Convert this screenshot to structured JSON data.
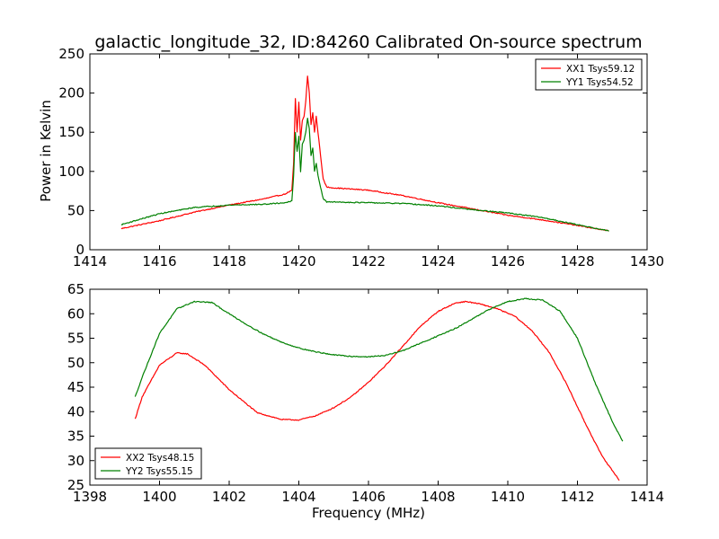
{
  "chart_data": [
    {
      "type": "line",
      "title": "galactic_longitude_32, ID:84260 Calibrated On-source spectrum",
      "xlabel": "",
      "ylabel": "Power in Kelvin",
      "xlim": [
        1414,
        1430
      ],
      "ylim": [
        0,
        250
      ],
      "xticks": [
        "1414",
        "1416",
        "1418",
        "1420",
        "1422",
        "1424",
        "1426",
        "1428",
        "1430"
      ],
      "yticks": [
        "0",
        "50",
        "100",
        "150",
        "200",
        "250"
      ],
      "grid": false,
      "legend_position": "top-right",
      "series": [
        {
          "name": "XX1 Tsys59.12",
          "color": "#ff0000",
          "x": [
            1414.9,
            1416,
            1417,
            1418,
            1419,
            1419.6,
            1419.8,
            1419.85,
            1419.9,
            1419.95,
            1420.0,
            1420.05,
            1420.1,
            1420.15,
            1420.2,
            1420.25,
            1420.3,
            1420.35,
            1420.4,
            1420.45,
            1420.5,
            1420.55,
            1420.6,
            1420.65,
            1420.7,
            1420.8,
            1421,
            1422,
            1423,
            1424,
            1425,
            1426,
            1427,
            1428,
            1428.9
          ],
          "y": [
            27,
            37,
            48,
            57,
            65,
            71,
            76,
            110,
            193,
            150,
            188,
            140,
            165,
            170,
            190,
            222,
            200,
            160,
            175,
            150,
            170,
            150,
            130,
            110,
            90,
            80,
            79,
            76,
            69,
            60,
            52,
            44,
            38,
            31,
            24
          ]
        },
        {
          "name": "YY1 Tsys54.52",
          "color": "#008000",
          "x": [
            1414.9,
            1416,
            1417,
            1418,
            1419,
            1419.6,
            1419.8,
            1419.85,
            1419.9,
            1419.95,
            1420.0,
            1420.05,
            1420.1,
            1420.15,
            1420.2,
            1420.25,
            1420.3,
            1420.35,
            1420.4,
            1420.45,
            1420.5,
            1420.55,
            1420.6,
            1420.65,
            1420.7,
            1420.8,
            1421,
            1422,
            1423,
            1424,
            1425,
            1426,
            1427,
            1428,
            1428.9
          ],
          "y": [
            32,
            46,
            54,
            57,
            58,
            60,
            62,
            95,
            150,
            125,
            145,
            100,
            135,
            140,
            150,
            168,
            155,
            120,
            130,
            100,
            110,
            95,
            85,
            75,
            65,
            61,
            61,
            60,
            59,
            56,
            51,
            47,
            41,
            32,
            24
          ]
        }
      ]
    },
    {
      "type": "line",
      "title": "",
      "xlabel": "Frequency (MHz)",
      "ylabel": "",
      "xlim": [
        1398,
        1414
      ],
      "ylim": [
        25,
        65
      ],
      "xticks": [
        "1398",
        "1400",
        "1402",
        "1404",
        "1406",
        "1408",
        "1410",
        "1412",
        "1414"
      ],
      "yticks": [
        "25",
        "30",
        "35",
        "40",
        "45",
        "50",
        "55",
        "60",
        "65"
      ],
      "grid": false,
      "legend_position": "bottom-left",
      "series": [
        {
          "name": "XX2 Tsys48.15",
          "color": "#ff0000",
          "x": [
            1399.3,
            1399.5,
            1400.0,
            1400.5,
            1400.8,
            1401.3,
            1402.0,
            1402.8,
            1403.5,
            1404.0,
            1404.5,
            1405.0,
            1405.5,
            1406.0,
            1406.5,
            1407.0,
            1407.5,
            1408.0,
            1408.5,
            1408.8,
            1409.2,
            1409.7,
            1410.2,
            1410.7,
            1411.2,
            1411.7,
            1412.2,
            1412.7,
            1413.2
          ],
          "y": [
            38.5,
            43,
            49.5,
            52,
            51.8,
            49.5,
            44.5,
            39.8,
            38.4,
            38.3,
            39.2,
            40.8,
            43,
            46,
            49.5,
            53.5,
            57.5,
            60.5,
            62.2,
            62.5,
            62,
            61,
            59.5,
            56.5,
            52,
            45.5,
            38,
            31,
            26
          ]
        },
        {
          "name": "YY2 Tsys55.15",
          "color": "#008000",
          "x": [
            1399.3,
            1399.5,
            1400.0,
            1400.5,
            1401.0,
            1401.5,
            1402.0,
            1402.5,
            1403.0,
            1403.5,
            1404.0,
            1404.5,
            1405.0,
            1405.5,
            1406.0,
            1406.5,
            1407.0,
            1407.5,
            1408.0,
            1408.5,
            1409.0,
            1409.5,
            1410.0,
            1410.5,
            1411.0,
            1411.5,
            1412.0,
            1412.5,
            1413.0,
            1413.3
          ],
          "y": [
            43,
            47,
            56,
            61,
            62.5,
            62.3,
            60,
            57.8,
            55.8,
            54.2,
            53,
            52.2,
            51.6,
            51.3,
            51.2,
            51.5,
            52.5,
            54,
            55.5,
            57,
            59,
            61,
            62.5,
            63.1,
            62.8,
            60.5,
            55,
            46,
            38,
            34
          ]
        }
      ]
    }
  ]
}
